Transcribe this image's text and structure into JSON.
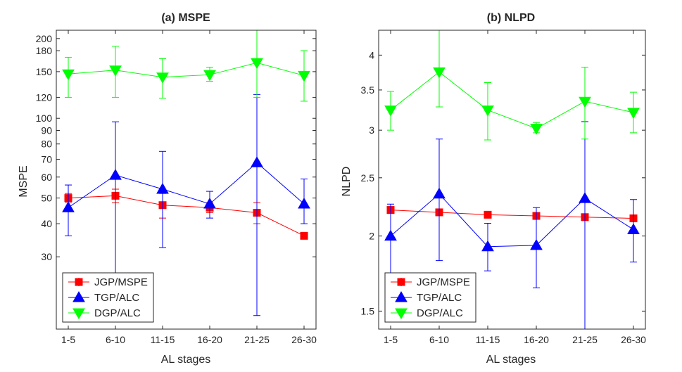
{
  "chart_data": [
    {
      "id": "panel-a",
      "type": "line",
      "title": "(a) MSPE",
      "xlabel": "AL stages",
      "ylabel": "MSPE",
      "yscale": "log",
      "ylim": [
        16,
        215
      ],
      "yticks": [
        30,
        40,
        50,
        60,
        70,
        80,
        90,
        100,
        120,
        150,
        180,
        200
      ],
      "categories": [
        "1-5",
        "6-10",
        "11-15",
        "16-20",
        "21-25",
        "26-30"
      ],
      "legend_position": "bottom-left",
      "series": [
        {
          "name": "JGP/MSPE",
          "color": "#ff0000",
          "marker": "square",
          "values": [
            50,
            51,
            47,
            46,
            44,
            36
          ],
          "lower": [
            48,
            48,
            42,
            44,
            40,
            35
          ],
          "upper": [
            52,
            54,
            52,
            48,
            48,
            37
          ]
        },
        {
          "name": "TGP/ALC",
          "color": "#0000ff",
          "marker": "triangle-up",
          "values": [
            46,
            61,
            54,
            47.5,
            68,
            47.5
          ],
          "lower": [
            36,
            24,
            32.5,
            42,
            18,
            40
          ],
          "upper": [
            56,
            97,
            75,
            53,
            123,
            59
          ]
        },
        {
          "name": "DGP/ALC",
          "color": "#00ff00",
          "marker": "triangle-down",
          "values": [
            147,
            152,
            143,
            146,
            162,
            145
          ],
          "lower": [
            120,
            120,
            119,
            138,
            120,
            116
          ],
          "upper": [
            170,
            187,
            168,
            156,
            215,
            180
          ]
        }
      ]
    },
    {
      "id": "panel-b",
      "type": "line",
      "title": "(b) NLPD",
      "xlabel": "AL stages",
      "ylabel": "NLPD",
      "yscale": "log",
      "ylim": [
        1.4,
        4.4
      ],
      "yticks": [
        1.5,
        2,
        2.5,
        3,
        3.5,
        4
      ],
      "categories": [
        "1-5",
        "6-10",
        "11-15",
        "16-20",
        "21-25",
        "26-30"
      ],
      "legend_position": "bottom-left",
      "series": [
        {
          "name": "JGP/MSPE",
          "color": "#ff0000",
          "marker": "square",
          "values": [
            2.21,
            2.19,
            2.17,
            2.16,
            2.15,
            2.14
          ],
          "lower": [
            2.18,
            2.17,
            2.15,
            2.14,
            2.13,
            2.12
          ],
          "upper": [
            2.24,
            2.21,
            2.19,
            2.18,
            2.17,
            2.16
          ]
        },
        {
          "name": "TGP/ALC",
          "color": "#0000ff",
          "marker": "triangle-up",
          "values": [
            2.0,
            2.35,
            1.92,
            1.93,
            2.31,
            2.05
          ],
          "lower": [
            1.73,
            1.82,
            1.75,
            1.64,
            1.4,
            1.81
          ],
          "upper": [
            2.26,
            2.9,
            2.1,
            2.23,
            3.1,
            2.3
          ]
        },
        {
          "name": "DGP/ALC",
          "color": "#00ff00",
          "marker": "triangle-down",
          "values": [
            3.24,
            3.75,
            3.24,
            3.02,
            3.35,
            3.21
          ],
          "lower": [
            3.0,
            3.28,
            2.89,
            2.97,
            2.9,
            2.97
          ],
          "upper": [
            3.48,
            4.4,
            3.6,
            3.09,
            3.82,
            3.47
          ]
        }
      ]
    }
  ]
}
